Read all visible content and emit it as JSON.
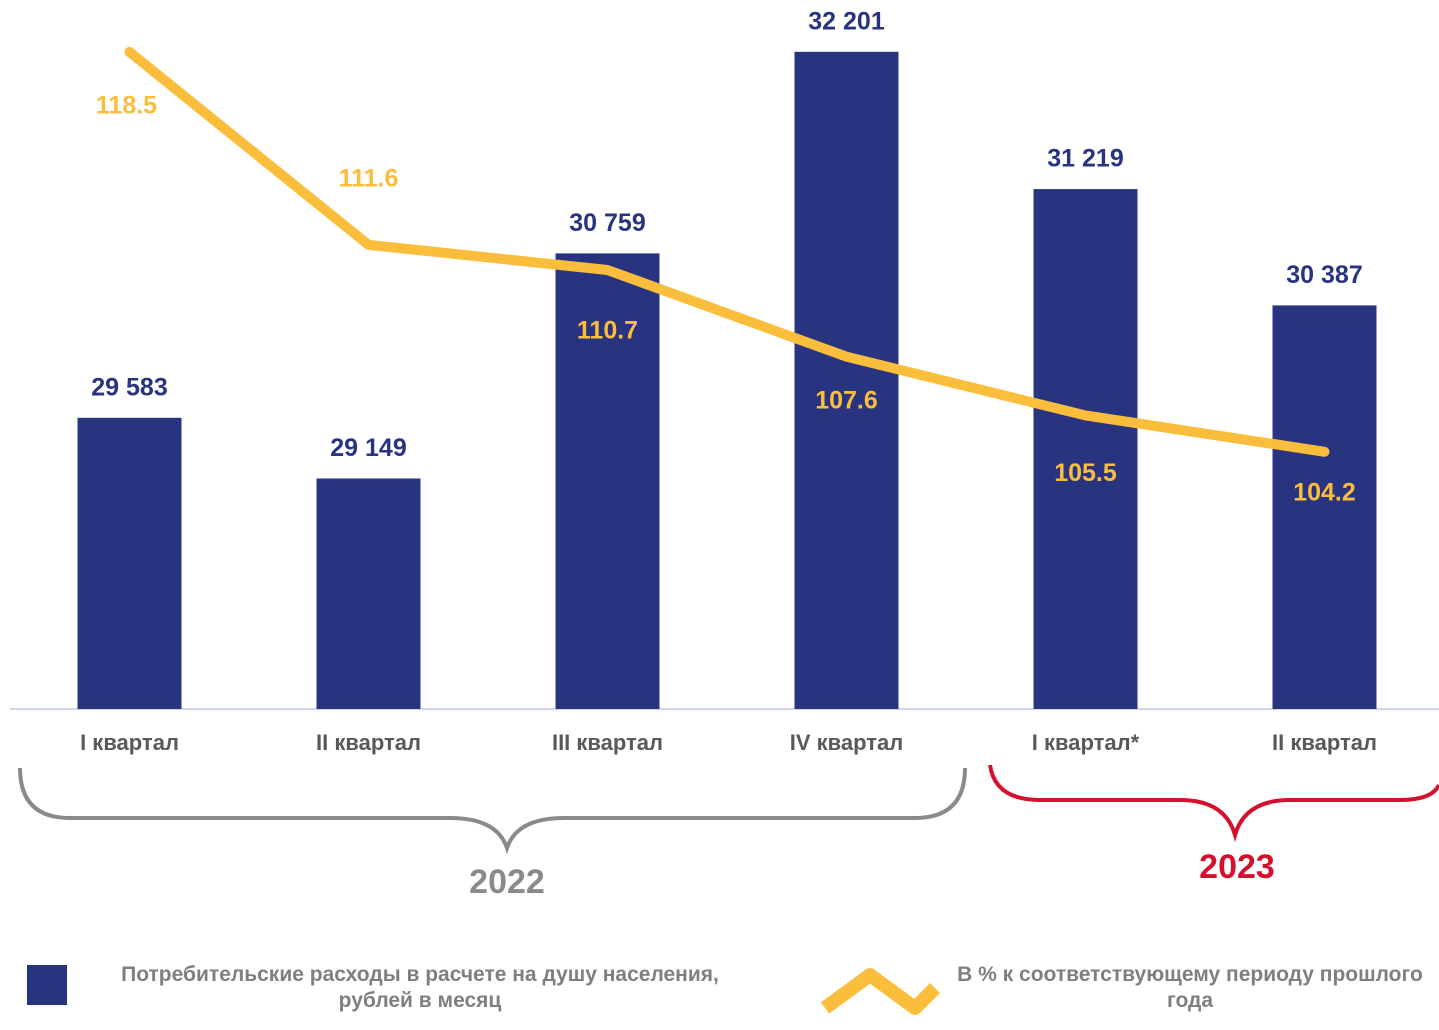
{
  "chart_data": {
    "type": "bar",
    "categories": [
      "I квартал",
      "II квартал",
      "III квартал",
      "IV квартал",
      "I квартал*",
      "II квартал"
    ],
    "series": [
      {
        "name": "Потребительские расходы в расчете  на душу населения, рублей в месяц",
        "type": "bar",
        "color": "#283480",
        "values": [
          29583,
          29149,
          30759,
          32201,
          31219,
          30387
        ],
        "value_labels": [
          "29 583",
          "29 149",
          "30 759",
          "32 201",
          "31 219",
          "30 387"
        ]
      },
      {
        "name": "В % к соответствующему периоду прошлого года",
        "type": "line",
        "axis": "y2",
        "color": "#fbbd3c",
        "values": [
          118.5,
          111.6,
          110.7,
          107.6,
          105.5,
          104.2
        ]
      }
    ],
    "ylim": [
      27500,
      32500
    ],
    "y2lim": [
      95,
      120
    ],
    "groups": [
      {
        "label": "2022",
        "color": "#8a8a8a"
      },
      {
        "label": "2023",
        "color": "#d3112f"
      }
    ]
  }
}
